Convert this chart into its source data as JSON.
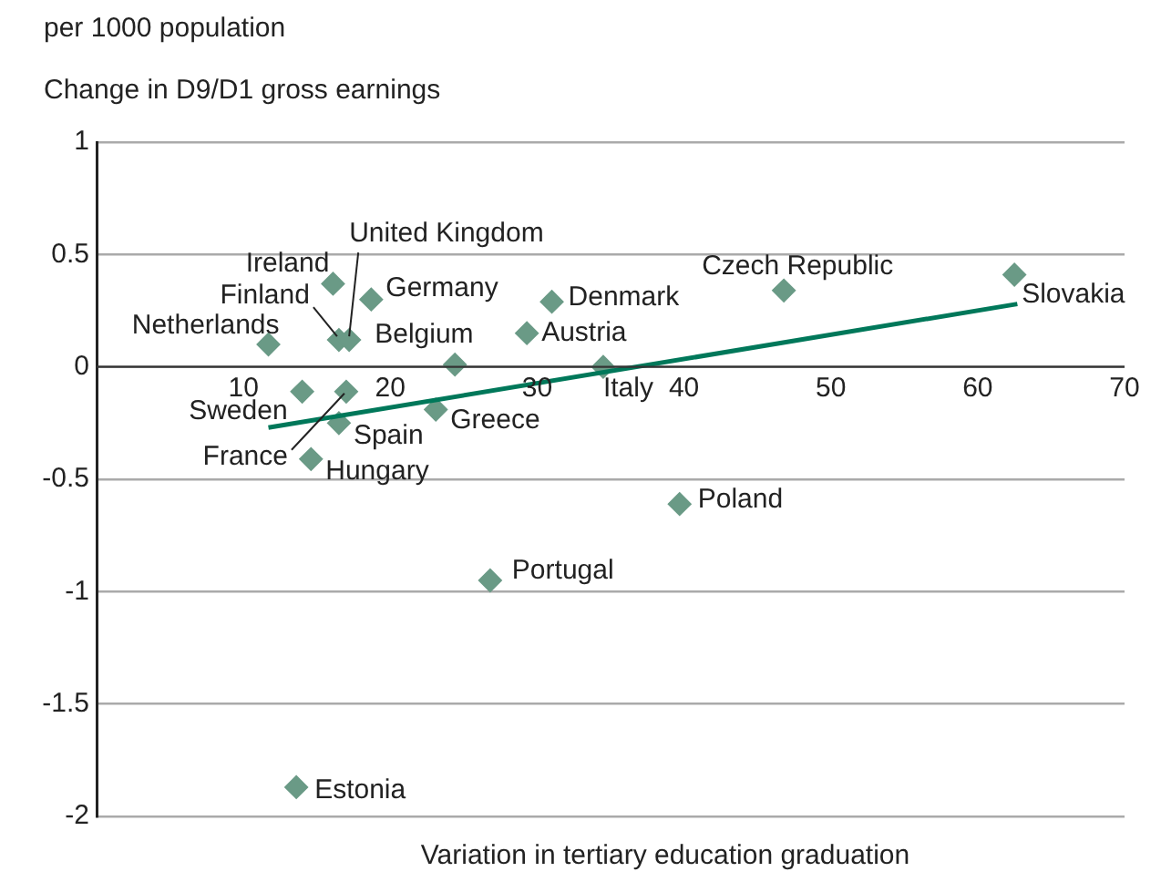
{
  "chart_data": {
    "type": "scatter",
    "ylabel": "Change in D9/D1 gross earnings",
    "xlabel": "Variation in tertiary education graduation",
    "xlim": [
      0,
      70
    ],
    "xticks": [
      10,
      20,
      30,
      40,
      50,
      60,
      70
    ],
    "ylim": [
      -2,
      1
    ],
    "yticks": [
      -2,
      -1.5,
      -1,
      -0.5,
      0,
      0.5,
      1
    ],
    "grid": "y",
    "legend": false,
    "series": [
      {
        "marker": "diamond",
        "color": "#6a9a86",
        "x": [
          11.7,
          16.1,
          16.5,
          17.2,
          18.7,
          24.4,
          29.3,
          31.0,
          34.5,
          46.8,
          62.5,
          14.0,
          17.0,
          16.5,
          23.1,
          14.6,
          39.7,
          26.8,
          13.6
        ],
        "values": [
          0.1,
          0.37,
          0.12,
          0.12,
          0.3,
          0.01,
          0.15,
          0.29,
          0,
          0.34,
          0.41,
          -0.11,
          -0.11,
          -0.25,
          -0.19,
          -0.41,
          -0.61,
          -0.95,
          -1.87
        ]
      },
      {
        "type": "line",
        "marker": "none",
        "color": "#00785a",
        "x": [
          11.7,
          62.7
        ],
        "values": [
          -0.27,
          0.28
        ]
      }
    ],
    "annotations": [
      "per 1000 population",
      {
        "text": "Netherlands",
        "x": 11.7,
        "y": 0.1
      },
      {
        "text": "Ireland",
        "x": 16.1,
        "y": 0.37
      },
      {
        "text": "Finland",
        "x": 16.5,
        "y": 0.12
      },
      {
        "text": "United Kingdom",
        "x": 17.2,
        "y": 0.12
      },
      {
        "text": "Germany",
        "x": 18.7,
        "y": 0.3
      },
      {
        "text": "Belgium",
        "x": 24.4,
        "y": 0.01
      },
      {
        "text": "Austria",
        "x": 29.3,
        "y": 0.15
      },
      {
        "text": "Denmark",
        "x": 31.0,
        "y": 0.29
      },
      {
        "text": "Italy",
        "x": 34.5,
        "y": 0
      },
      {
        "text": "Czech Republic",
        "x": 46.8,
        "y": 0.34
      },
      {
        "text": "Slovakia",
        "x": 62.5,
        "y": 0.41
      },
      {
        "text": "Sweden",
        "x": 14.0,
        "y": -0.11
      },
      {
        "text": "France",
        "x": 17.0,
        "y": -0.11
      },
      {
        "text": "Spain",
        "x": 16.5,
        "y": -0.25
      },
      {
        "text": "Greece",
        "x": 23.1,
        "y": -0.19
      },
      {
        "text": "Hungary",
        "x": 14.6,
        "y": -0.41
      },
      {
        "text": "Poland",
        "x": 39.7,
        "y": -0.61
      },
      {
        "text": "Portugal",
        "x": 26.8,
        "y": -0.95
      },
      {
        "text": "Estonia",
        "x": 13.6,
        "y": -1.87
      }
    ]
  }
}
